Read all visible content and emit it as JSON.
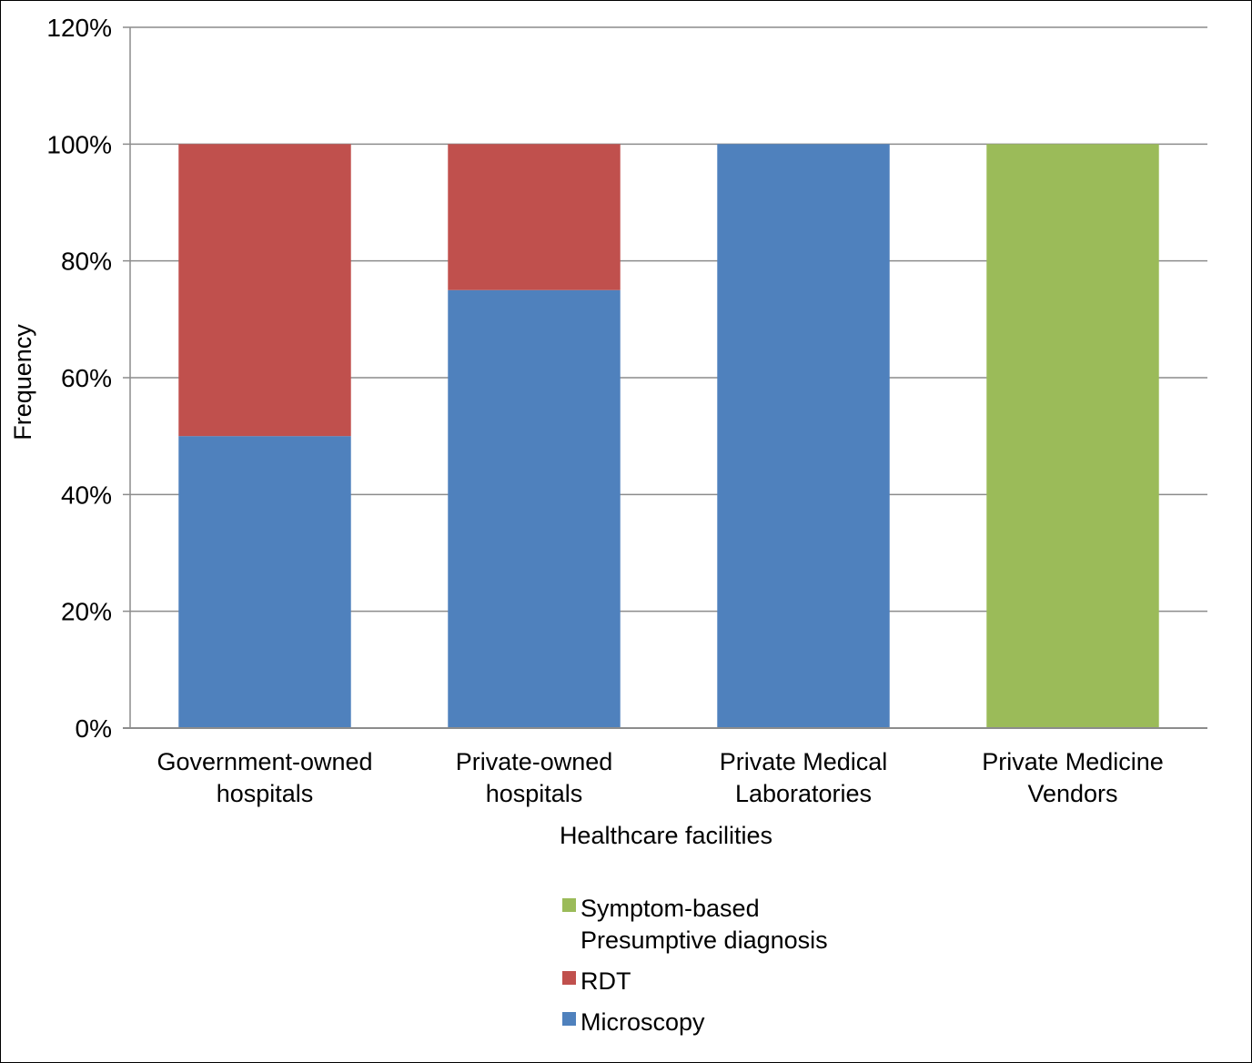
{
  "chart_data": {
    "type": "bar",
    "stacked": true,
    "title": "",
    "xlabel": "Healthcare facilities",
    "ylabel": "Frequency",
    "ylim": [
      0,
      120
    ],
    "yticks": [
      "0%",
      "20%",
      "40%",
      "60%",
      "80%",
      "100%",
      "120%"
    ],
    "grid": true,
    "legend_position": "bottom",
    "categories": [
      [
        "Government-owned",
        "hospitals"
      ],
      [
        "Private-owned",
        "hospitals"
      ],
      [
        "Private Medical",
        "Laboratories"
      ],
      [
        "Private Medicine",
        "Vendors"
      ]
    ],
    "series": [
      {
        "name": "Microscopy",
        "color": "#4F81BD",
        "values": [
          50,
          75,
          100,
          0
        ]
      },
      {
        "name": "RDT",
        "color": "#C0504D",
        "values": [
          50,
          25,
          0,
          0
        ]
      },
      {
        "name": "Symptom-based Presumptive diagnosis",
        "color": "#9BBB59",
        "values": [
          0,
          0,
          0,
          100
        ]
      }
    ],
    "legend": [
      {
        "lines": [
          "Symptom-based",
          "Presumptive diagnosis"
        ],
        "color": "#9BBB59"
      },
      {
        "lines": [
          "RDT"
        ],
        "color": "#C0504D"
      },
      {
        "lines": [
          "Microscopy"
        ],
        "color": "#4F81BD"
      }
    ]
  }
}
